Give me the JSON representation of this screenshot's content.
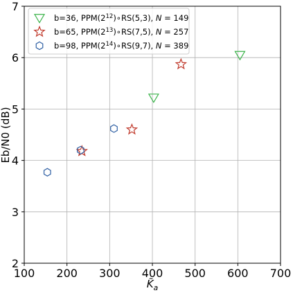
{
  "chart_data": {
    "type": "scatter",
    "title": "",
    "xlabel": "K̃",
    "xlabel_sub": "a",
    "ylabel": "Eb/N0 (dB)",
    "xlim": [
      100,
      700
    ],
    "ylim": [
      2,
      7
    ],
    "xticks": [
      100,
      200,
      300,
      400,
      500,
      600,
      700
    ],
    "yticks": [
      2,
      3,
      4,
      5,
      6,
      7
    ],
    "grid": true,
    "legend_position": "upper-left",
    "series": [
      {
        "marker": "triangle-down",
        "color": "#3cb44b",
        "name_parts": [
          "b=36, PPM(2",
          "12",
          ")∘RS(5,3), ",
          "N",
          " = 149"
        ],
        "points": [
          {
            "x": 403,
            "y": 5.22
          },
          {
            "x": 605,
            "y": 6.05
          }
        ]
      },
      {
        "marker": "star",
        "color": "#c0392b",
        "name_parts": [
          "b=65, PPM(2",
          "13",
          ")∘RS(7,5), ",
          "N",
          " = 257"
        ],
        "points": [
          {
            "x": 235,
            "y": 4.18
          },
          {
            "x": 352,
            "y": 4.6
          },
          {
            "x": 467,
            "y": 5.87
          }
        ]
      },
      {
        "marker": "hexagon",
        "color": "#2e5fa3",
        "name_parts": [
          "b=98, PPM(2",
          "14",
          ")∘RS(9,7), ",
          "N",
          " = 389"
        ],
        "points": [
          {
            "x": 154,
            "y": 3.77
          },
          {
            "x": 232,
            "y": 4.2
          },
          {
            "x": 310,
            "y": 4.62
          }
        ]
      }
    ]
  }
}
